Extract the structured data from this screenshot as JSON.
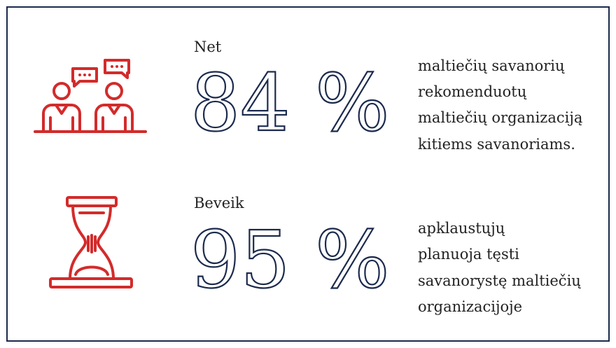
{
  "stats": [
    {
      "prefix": "Net",
      "value": "84 %",
      "description": [
        "maltiečių savanorių",
        "rekomenduotų",
        "maltiečių organizaciją",
        "kitiems savanoriams."
      ]
    },
    {
      "prefix": "Beveik",
      "value": "95 %",
      "description": [
        "apklaustųjų",
        "planuoja tęsti",
        "savanorystę maltiečių",
        "organizacijoje"
      ]
    }
  ]
}
